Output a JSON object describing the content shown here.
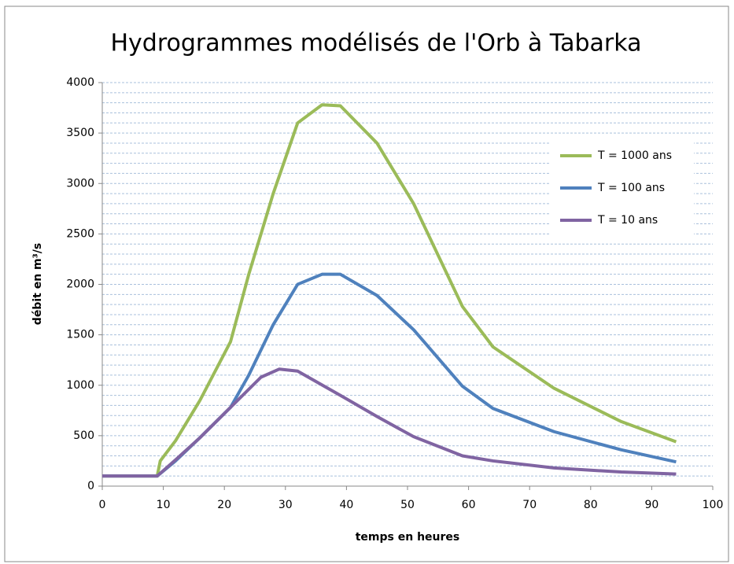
{
  "chart_data": {
    "type": "line",
    "title": "Hydrogrammes modélisés de l'Orb à Tabarka",
    "x_label": "temps en heures",
    "y_label": "débit en m³/s",
    "xlim": [
      0,
      100
    ],
    "xticks": [
      0,
      10,
      20,
      30,
      40,
      50,
      60,
      70,
      80,
      90,
      100
    ],
    "ylim": [
      0,
      4000
    ],
    "yticks": [
      0,
      500,
      1000,
      1500,
      2000,
      2500,
      3000,
      3500,
      4000
    ],
    "minor_yticks": [
      100,
      200,
      300,
      400,
      600,
      700,
      800,
      900,
      1100,
      1200,
      1300,
      1400,
      1600,
      1700,
      1800,
      1900,
      2100,
      2200,
      2300,
      2400,
      2600,
      2700,
      2800,
      2900,
      3100,
      3200,
      3300,
      3400,
      3600,
      3700,
      3800,
      3900
    ],
    "grid": true,
    "legend": "upper right",
    "series": [
      {
        "name": "T = 1000 ans",
        "color": "#9bbb59",
        "x": [
          0,
          9,
          9.5,
          12,
          16,
          21,
          24,
          28,
          32,
          36,
          39,
          45,
          51,
          59,
          64,
          74,
          85,
          94
        ],
        "values": [
          100,
          100,
          250,
          450,
          850,
          1430,
          2100,
          2900,
          3600,
          3780,
          3770,
          3400,
          2800,
          1780,
          1380,
          970,
          640,
          440
        ]
      },
      {
        "name": "T = 100 ans",
        "color": "#4f81bd",
        "x": [
          0,
          9,
          12,
          16,
          21,
          24,
          28,
          32,
          36,
          39,
          45,
          51,
          59,
          64,
          74,
          85,
          94
        ],
        "values": [
          100,
          100,
          250,
          480,
          780,
          1100,
          1600,
          2000,
          2100,
          2100,
          1890,
          1550,
          990,
          770,
          540,
          360,
          240
        ]
      },
      {
        "name": "T = 10 ans",
        "color": "#8064a2",
        "x": [
          0,
          9,
          12,
          16,
          21,
          26,
          29,
          32,
          39,
          45,
          51,
          59,
          64,
          74,
          85,
          94
        ],
        "values": [
          100,
          100,
          260,
          480,
          780,
          1080,
          1160,
          1140,
          900,
          690,
          490,
          300,
          250,
          180,
          140,
          120
        ]
      }
    ]
  }
}
